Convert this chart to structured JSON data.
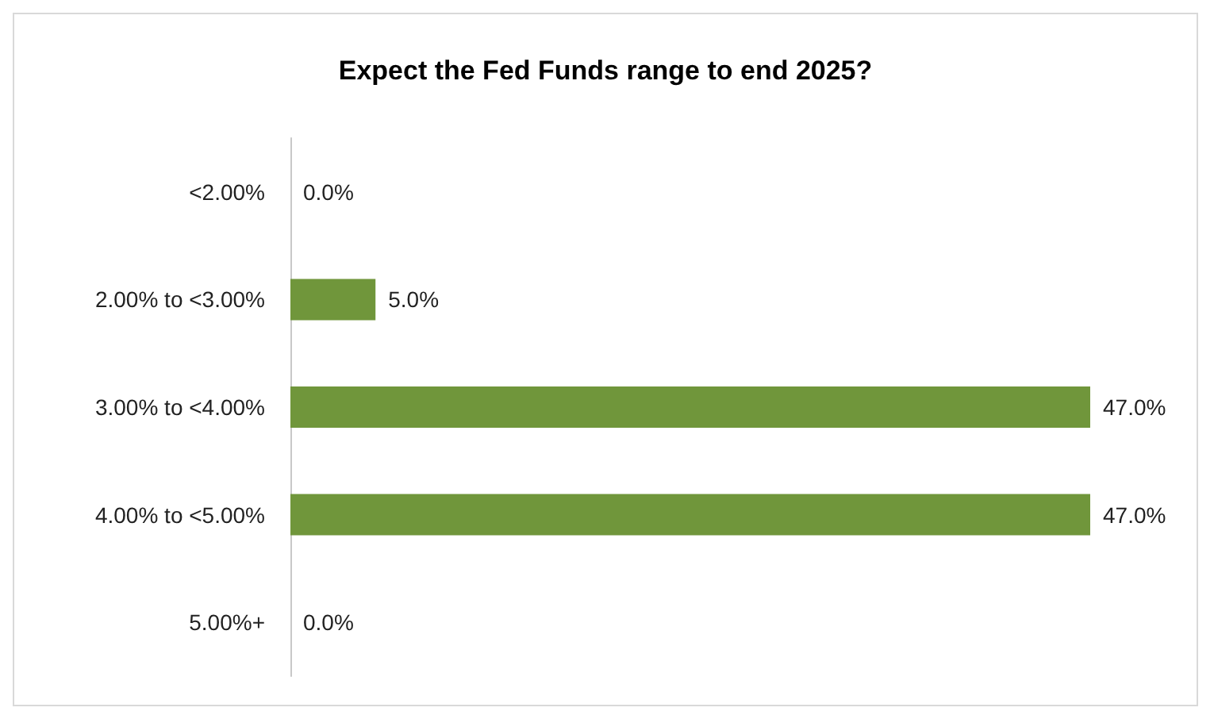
{
  "chart_data": {
    "type": "bar",
    "orientation": "horizontal",
    "title": "Expect the Fed Funds range to end 2025?",
    "categories": [
      "<2.00%",
      "2.00% to <3.00%",
      "3.00% to <4.00%",
      "4.00% to <5.00%",
      "5.00%+"
    ],
    "values": [
      0,
      5,
      47,
      47,
      0
    ],
    "color": "#70963b",
    "value_labels": [
      "0.0%",
      "5.0%",
      "47.0%",
      "47.0%",
      "0.0%"
    ]
  }
}
